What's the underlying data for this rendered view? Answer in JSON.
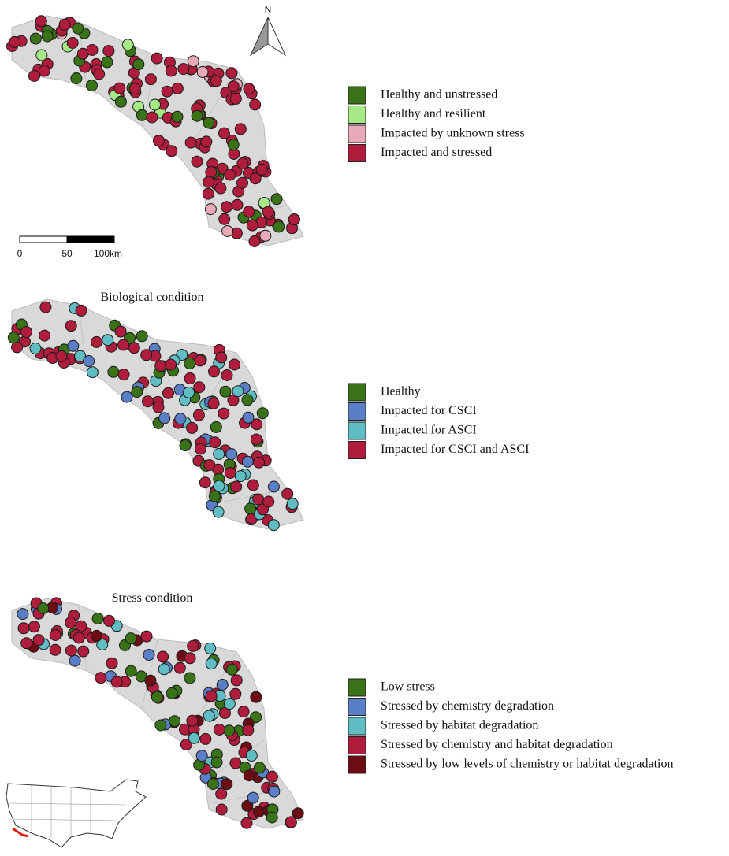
{
  "panels": [
    {
      "legend": [
        {
          "label": "Healthy and unstressed",
          "color": "#3a7317"
        },
        {
          "label": "Healthy and resilient",
          "color": "#a6ea88"
        },
        {
          "label": "Impacted by unknown stress",
          "color": "#e8a9b8"
        },
        {
          "label": "Impacted and stressed",
          "color": "#b01d3c"
        }
      ]
    },
    {
      "title": "Biological condition",
      "legend": [
        {
          "label": "Healthy",
          "color": "#3a7317"
        },
        {
          "label": "Impacted for CSCI",
          "color": "#5b7fc7"
        },
        {
          "label": "Impacted for ASCI",
          "color": "#5fbdc3"
        },
        {
          "label": "Impacted for CSCI and ASCI",
          "color": "#b01d3c"
        }
      ]
    },
    {
      "title": "Stress condition",
      "legend": [
        {
          "label": "Low stress",
          "color": "#3a7317"
        },
        {
          "label": "Stressed by chemistry degradation",
          "color": "#5b7fc7"
        },
        {
          "label": "Stressed by habitat degradation",
          "color": "#5fbdc3"
        },
        {
          "label": "Stressed by chemistry and habitat degradation",
          "color": "#b01d3c"
        },
        {
          "label": "Stressed by low levels of chemistry or habitat degradation",
          "color": "#6b0d12"
        }
      ]
    }
  ],
  "scale_bar": {
    "labels": [
      "0",
      "50",
      "100km"
    ]
  },
  "north_arrow": "N"
}
